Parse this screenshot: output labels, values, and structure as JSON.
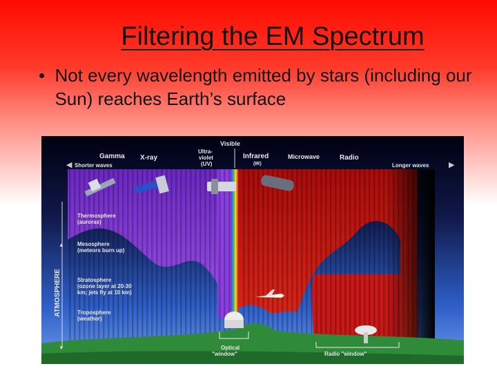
{
  "slide": {
    "title": "Filtering the EM Spectrum",
    "bullet": "Not every wavelength emitted by stars (including our Sun) reaches Earth’s surface"
  },
  "figure": {
    "bands": {
      "gamma": "Gamma",
      "xray": "X-ray",
      "uv_line1": "Ultra-",
      "uv_line2": "violet",
      "uv_line3": "(UV)",
      "visible": "Visible",
      "infrared": "Infrared",
      "infrared_sub": "(IR)",
      "microwave": "Microwave",
      "radio": "Radio"
    },
    "shorter_waves": "Shorter waves",
    "longer_waves": "Longer waves",
    "atmosphere": "ATMOSPHERE",
    "layers": {
      "thermo_1": "Thermosphere",
      "thermo_2": "(auroras)",
      "meso_1": "Mesosphere",
      "meso_2": "(meteors burn up)",
      "strato_1": "Stratosphere",
      "strato_2": "(ozone layer at 20-30",
      "strato_3": "km; jets fly at 10 km)",
      "tropo_1": "Troposphere",
      "tropo_2": "(weather)"
    },
    "optical_1": "Optical",
    "optical_2": "\"window\"",
    "radio_window": "Radio \"window\"",
    "colors": {
      "uv_purple": "#7a2ad0",
      "ir_red": "#c01010",
      "sky_blue": "#3a6fd8",
      "ground_green": "#2f8a3a"
    }
  }
}
